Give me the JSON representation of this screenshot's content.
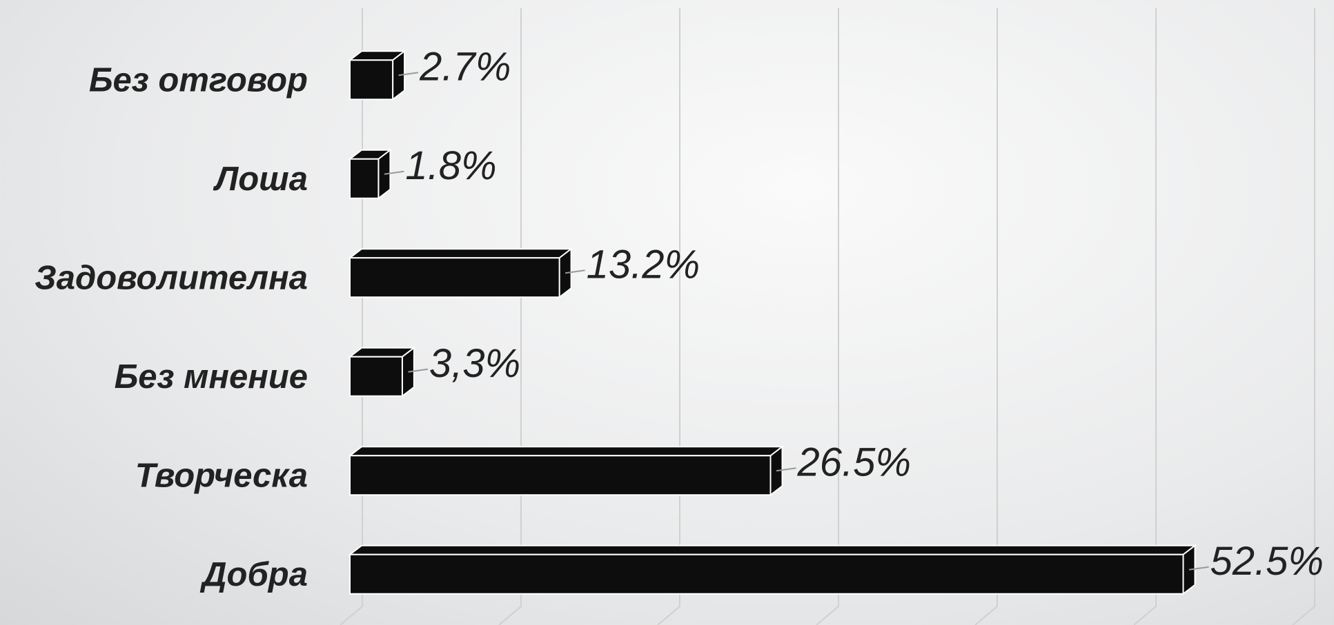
{
  "chart_data": {
    "type": "bar3d",
    "orientation": "horizontal",
    "categories": [
      "Без отговор",
      "Лоша",
      "Задоволителна",
      "Без мнение",
      "Творческа",
      "Добра"
    ],
    "values": [
      2.7,
      1.8,
      13.2,
      3.3,
      26.5,
      52.5
    ],
    "value_labels": [
      "2.7%",
      "1.8%",
      "13.2%",
      "3,3%",
      "26.5%",
      "52.5%"
    ],
    "color": "#0d0d0d",
    "xlim": [
      0,
      60
    ],
    "xticks": [
      0,
      10,
      20,
      30,
      40,
      50,
      60
    ],
    "grid": true
  }
}
